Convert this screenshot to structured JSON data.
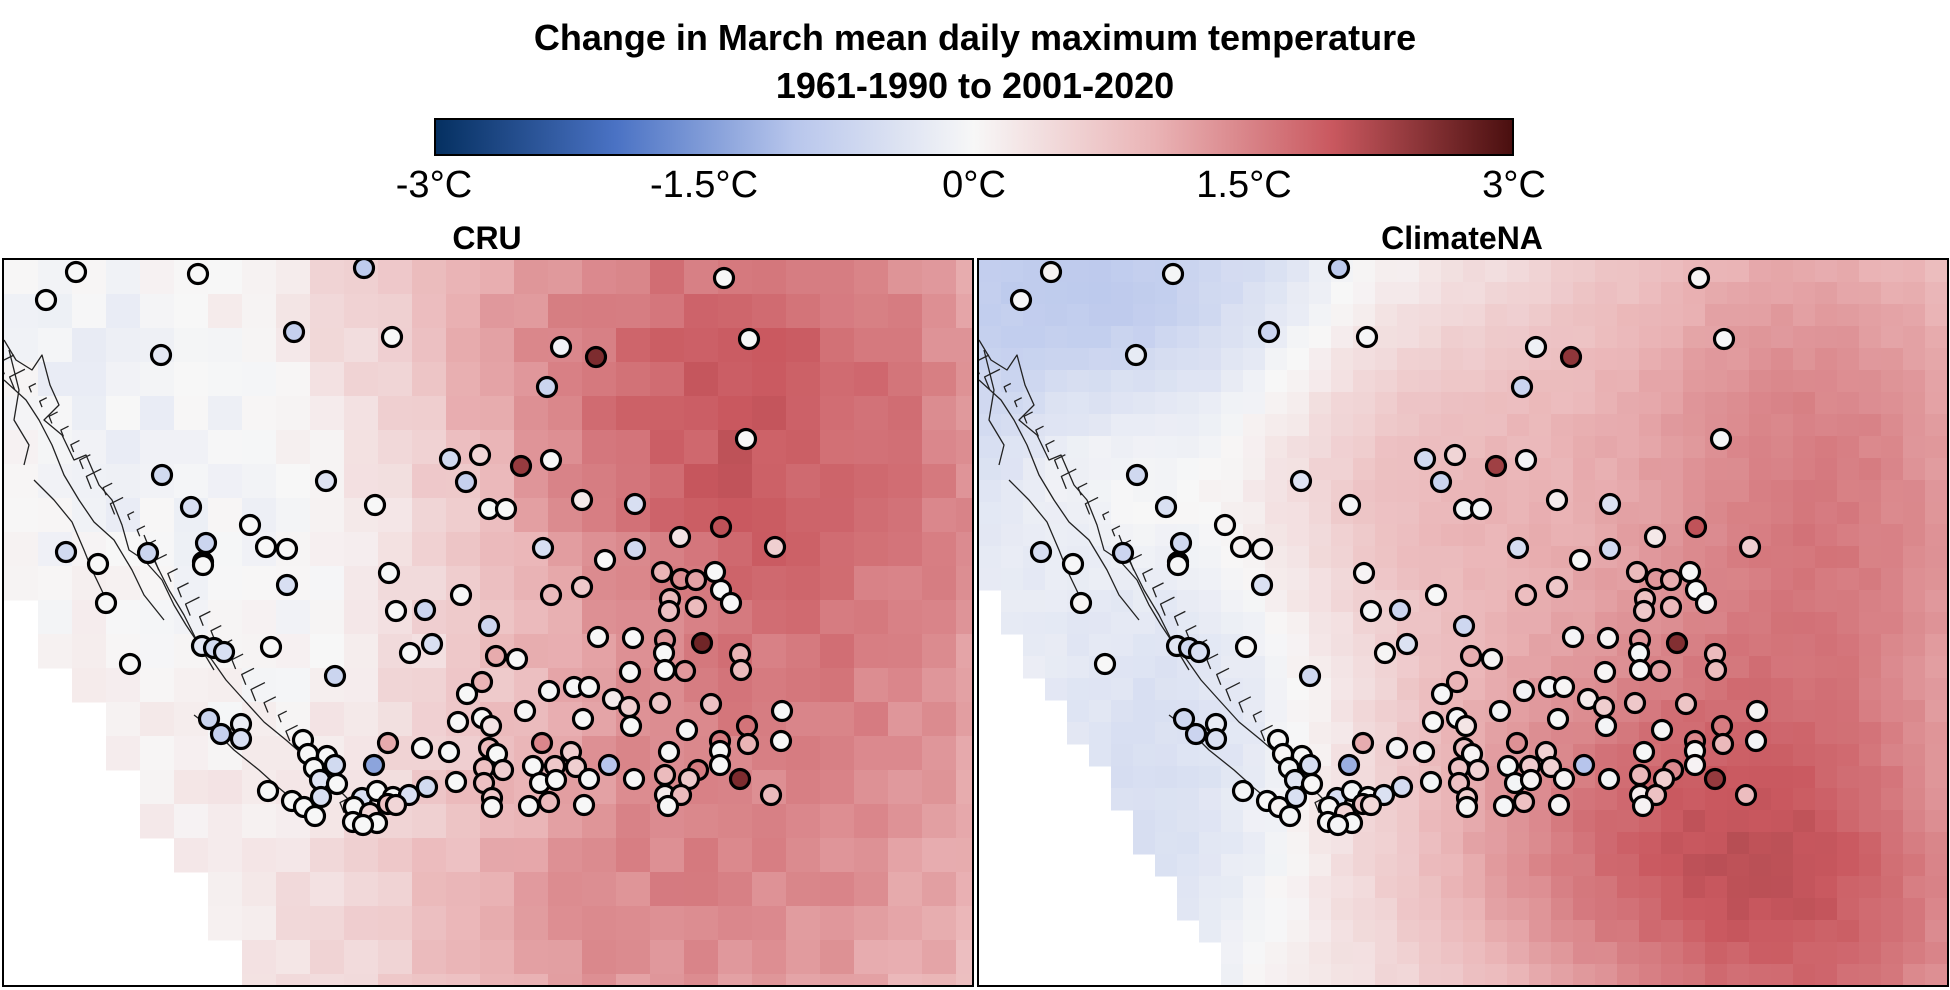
{
  "title": {
    "line1": "Change in March mean daily maximum temperature",
    "line2": "1961-1990 to 2001-2020"
  },
  "colorbar": {
    "min": -3,
    "max": 3,
    "ticks": [
      "-3°C",
      "-1.5°C",
      "0°C",
      "1.5°C",
      "3°C"
    ],
    "tick_values": [
      -3,
      -1.5,
      0,
      1.5,
      3
    ],
    "stops": [
      {
        "value": -3,
        "color": "#053061"
      },
      {
        "value": -2,
        "color": "#4a72c4"
      },
      {
        "value": -1,
        "color": "#b8c6ec"
      },
      {
        "value": 0,
        "color": "#f7f7f7"
      },
      {
        "value": 1,
        "color": "#eab4b6"
      },
      {
        "value": 2,
        "color": "#c9585f"
      },
      {
        "value": 3,
        "color": "#4a0f0f"
      }
    ]
  },
  "panels": [
    {
      "name": "cru",
      "title": "CRU"
    },
    {
      "name": "climatena",
      "title": "ClimateNA"
    }
  ]
}
